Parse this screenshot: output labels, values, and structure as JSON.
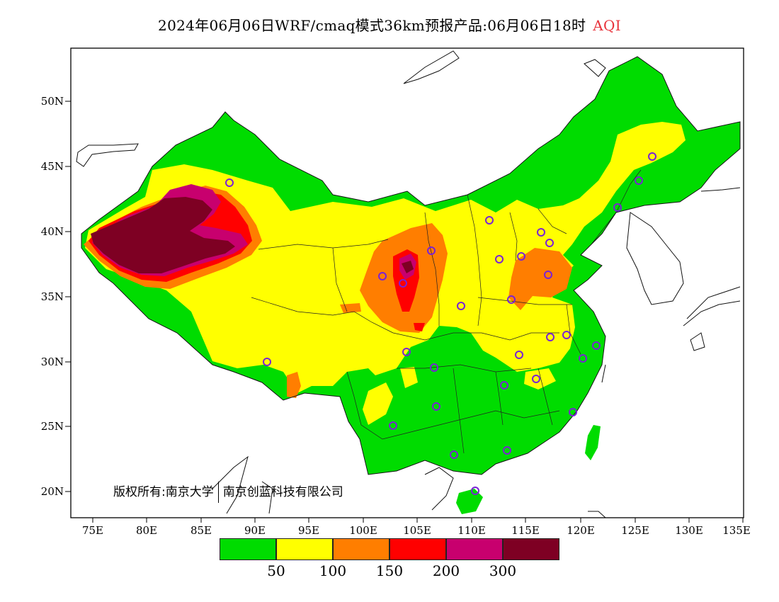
{
  "title": {
    "text": "2024年06月06日WRF/cmaq模式36km预报产品:06月06日18时",
    "product": "AQI",
    "product_color": "#e8343c"
  },
  "axes": {
    "x_ticks": [
      "75E",
      "80E",
      "85E",
      "90E",
      "95E",
      "100E",
      "105E",
      "110E",
      "115E",
      "120E",
      "125E",
      "130E",
      "135E"
    ],
    "y_ticks": [
      "50N",
      "45N",
      "40N",
      "35N",
      "30N",
      "25N",
      "20N"
    ]
  },
  "copyright": {
    "left": "版权所有:南京大学",
    "right": "南京创蓝科技有限公司"
  },
  "legend": {
    "colors": [
      "#00dc00",
      "#ffff00",
      "#ff7e00",
      "#ff0000",
      "#c8006e",
      "#7e0023"
    ],
    "labels": [
      "50",
      "100",
      "150",
      "200",
      "300"
    ]
  },
  "colors": {
    "good": "#00dc00",
    "moderate": "#ffff00",
    "unhealthy_sensitive": "#ff7e00",
    "unhealthy": "#ff0000",
    "very_unhealthy": "#c8006e",
    "hazardous": "#7e0023",
    "station_marker": "#7a22d6"
  }
}
